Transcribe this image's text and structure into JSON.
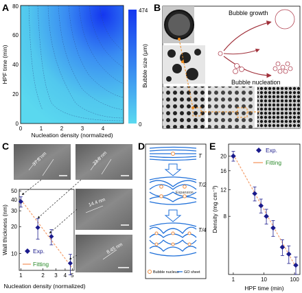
{
  "panels": {
    "A": {
      "letter": "A",
      "xlabel": "Nucleation density (normalized)",
      "ylabel": "HPF time (min)",
      "colorbar_label": "Bubble size (μm)",
      "colorbar_max": "474",
      "colorbar_min": "0",
      "colors": {
        "low": "#52d6ee",
        "high": "#1436f0"
      }
    },
    "B": {
      "letter": "B",
      "growth_label": "Bubble growth",
      "nucleation_label": "Bubble nucleation",
      "colors": {
        "arrow": "#a0303a",
        "circle": "#b04050",
        "dashed": "#f08c1e"
      }
    },
    "C": {
      "letter": "C",
      "xlabel": "Nucleation density (normalized)",
      "ylabel": "Wall thickness (nm)",
      "legend_exp": "Exp.",
      "legend_fit": "Fitting",
      "tem_labels": [
        "37.6 nm",
        "23.6 nm",
        "14.4 nm",
        "8.45 nm"
      ],
      "colors": {
        "marker": "#1a1a8c",
        "fit": "#f5a06e"
      }
    },
    "D": {
      "letter": "D",
      "frac_T": "T",
      "frac_half": "T/2",
      "frac_quarter": "T/4",
      "expansion_label": "Expansion",
      "legend_nucleus": "Bubble nucleus",
      "legend_sheet": "GO sheet",
      "colors": {
        "sheet": "#1e6fd9",
        "nucleus": "#f08c3c"
      }
    },
    "E": {
      "letter": "E",
      "xlabel": "HPF time (min)",
      "ylabel": "Density (mg cm⁻³)",
      "legend_exp": "Exp.",
      "legend_fit": "Fitting",
      "colors": {
        "marker": "#1a1a8c",
        "fit": "#f5a06e"
      }
    }
  },
  "chart_data": [
    {
      "panel": "A",
      "type": "heatmap",
      "x_ticks": [
        "0",
        "1",
        "2",
        "3",
        "4"
      ],
      "y_ticks": [
        "0",
        "20",
        "40",
        "60",
        "80"
      ],
      "xlim": [
        0,
        5
      ],
      "ylim": [
        0,
        80
      ],
      "color_range": [
        0,
        474
      ]
    },
    {
      "panel": "C",
      "type": "scatter",
      "x_scale": "log",
      "y_scale": "log",
      "x_ticks": [
        "1",
        "2",
        "3",
        "4",
        "5"
      ],
      "y_ticks": [
        "10",
        "20",
        "30",
        "40",
        "50"
      ],
      "xlim": [
        0.95,
        5.3
      ],
      "ylim": [
        6.5,
        52
      ],
      "series": [
        {
          "name": "Exp.",
          "x": [
            1.0,
            1.7,
            2.6,
            4.7
          ],
          "y": [
            38,
            19.5,
            15.5,
            7.8
          ],
          "err": [
            5,
            5,
            3,
            2
          ]
        },
        {
          "name": "Fitting",
          "x": [
            1.0,
            5.0
          ],
          "y": [
            40,
            6.9
          ]
        }
      ]
    },
    {
      "panel": "E",
      "type": "scatter",
      "x_scale": "log",
      "y_scale": "log",
      "x_ticks": [
        "1",
        "10",
        "100"
      ],
      "y_ticks": [
        "8",
        "12",
        "16",
        "20"
      ],
      "xlim": [
        0.7,
        150
      ],
      "ylim": [
        3.3,
        24
      ],
      "series": [
        {
          "name": "Exp.",
          "x": [
            1,
            5,
            8,
            12,
            20,
            40,
            65,
            110
          ],
          "y": [
            20,
            11.3,
            9.4,
            8.0,
            6.7,
            5.0,
            4.5,
            3.8
          ],
          "err": [
            1.5,
            1.2,
            1.0,
            0.9,
            0.8,
            0.6,
            0.6,
            0.5
          ]
        },
        {
          "name": "Fitting",
          "x": [
            1,
            110
          ],
          "y": [
            20.5,
            3.7
          ]
        }
      ]
    }
  ]
}
